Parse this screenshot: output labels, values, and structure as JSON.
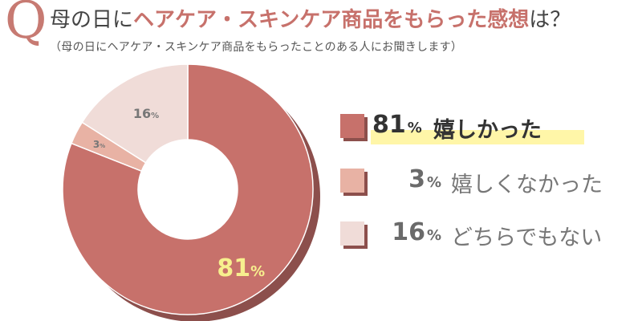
{
  "header": {
    "q": "Q",
    "title_pre": "母の日に",
    "title_hl": "ヘアケア・スキンケア商品をもらった感想",
    "title_post": "は？",
    "subtitle": "（母の日にヘアケア・スキンケア商品をもらったことのある人にお聞きします）"
  },
  "chart_data": {
    "type": "pie",
    "donut": true,
    "categories": [
      "嬉しかった",
      "嬉しくなかった",
      "どちらでもない"
    ],
    "values": [
      81,
      3,
      16
    ],
    "unit": "%",
    "colors": [
      "#c7716b",
      "#e8b2a4",
      "#f0dcd8"
    ],
    "label_colors": [
      "#f7ef8e",
      "#777777",
      "#777777"
    ],
    "shadow_color": "#8c4f4c",
    "highlight_color": "#fff6a8"
  },
  "legend": [
    {
      "value": "81",
      "unit": "%",
      "label": "嬉しかった",
      "color": "#c7716b"
    },
    {
      "value": "3",
      "unit": "%",
      "label": "嬉しくなかった",
      "color": "#e8b2a4"
    },
    {
      "value": "16",
      "unit": "%",
      "label": "どちらでもない",
      "color": "#f0dcd8"
    }
  ]
}
